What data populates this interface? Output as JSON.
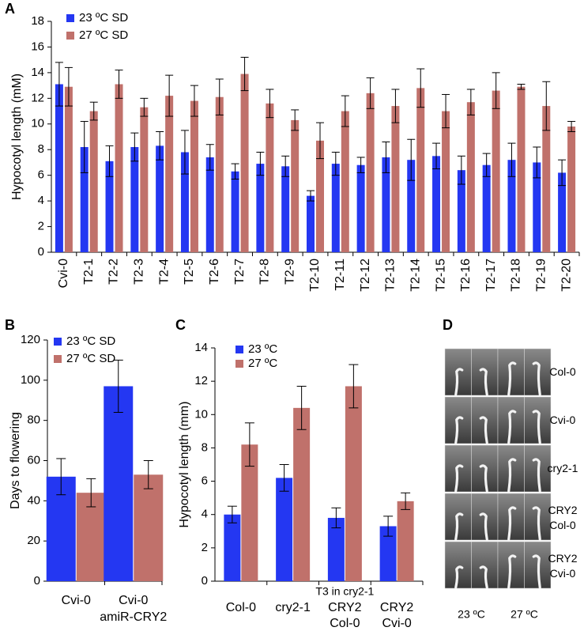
{
  "chart_data": [
    {
      "type": "bar",
      "panel_label": "A",
      "y_label": "Hypocotyl length (mM)",
      "categories": [
        "Cvi-0",
        "T2-1",
        "T2-2",
        "T2-3",
        "T2-4",
        "T2-5",
        "T2-6",
        "T2-7",
        "T2-8",
        "T2-9",
        "T2-10",
        "T2-11",
        "T2-12",
        "T2-13",
        "T2-14",
        "T2-15",
        "T2-16",
        "T2-17",
        "T2-18",
        "T2-19",
        "T2-20"
      ],
      "series": [
        {
          "name": "23 ºC SD",
          "color": "#2437f2",
          "values": [
            13.1,
            8.2,
            7.1,
            8.2,
            8.3,
            7.8,
            7.4,
            6.3,
            6.9,
            6.7,
            4.4,
            6.9,
            6.8,
            7.4,
            7.2,
            7.5,
            6.4,
            6.8,
            7.2,
            7.0,
            6.2
          ],
          "errors": [
            1.7,
            2.0,
            1.2,
            1.1,
            1.1,
            1.7,
            1.0,
            0.6,
            0.9,
            0.8,
            0.4,
            0.9,
            0.6,
            1.2,
            1.6,
            1.0,
            1.1,
            0.9,
            1.3,
            1.2,
            1.0
          ]
        },
        {
          "name": "27 ºC SD",
          "color": "#c0716b",
          "values": [
            12.9,
            11.0,
            13.1,
            11.3,
            12.2,
            11.8,
            12.1,
            13.9,
            11.6,
            10.3,
            8.7,
            11.0,
            12.4,
            11.4,
            12.8,
            11.0,
            11.7,
            12.6,
            12.9,
            11.4,
            9.8
          ],
          "errors": [
            1.5,
            0.7,
            1.1,
            0.7,
            1.6,
            1.2,
            1.4,
            1.3,
            1.1,
            0.8,
            1.4,
            1.2,
            1.2,
            1.3,
            1.5,
            1.3,
            1.0,
            1.4,
            0.2,
            1.9,
            0.4
          ]
        }
      ],
      "ylim": [
        0,
        18
      ],
      "yticks": [
        0,
        2,
        4,
        6,
        8,
        10,
        12,
        14,
        16,
        18
      ],
      "legend": "upper left"
    },
    {
      "type": "bar",
      "panel_label": "B",
      "y_label": "Days to flowering",
      "categories": [
        [
          "Cvi-0"
        ],
        [
          "Cvi-0",
          "amiR-CRY2"
        ]
      ],
      "series": [
        {
          "name": "23 ºC SD",
          "color": "#2437f2",
          "values": [
            52,
            97
          ],
          "errors": [
            9,
            13
          ]
        },
        {
          "name": "27 ºC SD",
          "color": "#c0716b",
          "values": [
            44,
            53
          ],
          "errors": [
            7,
            7
          ]
        }
      ],
      "ylim": [
        0,
        120
      ],
      "yticks": [
        0,
        20,
        40,
        60,
        80,
        100,
        120
      ],
      "legend": "upper left"
    },
    {
      "type": "bar",
      "panel_label": "C",
      "y_label": "Hypocotyl length (mm)",
      "annotation": "T3 in cry2-1",
      "categories": [
        [
          "Col-0"
        ],
        [
          "cry2-1"
        ],
        [
          "CRY2",
          "Col-0"
        ],
        [
          "CRY2",
          "Cvi-0"
        ]
      ],
      "series": [
        {
          "name": "23 ºC",
          "color": "#2437f2",
          "values": [
            4.0,
            6.2,
            3.8,
            3.3
          ],
          "errors": [
            0.5,
            0.8,
            0.6,
            0.6
          ]
        },
        {
          "name": "27 ºC",
          "color": "#c0716b",
          "values": [
            8.2,
            10.4,
            11.7,
            4.8
          ],
          "errors": [
            1.3,
            1.3,
            1.3,
            0.5
          ]
        }
      ],
      "ylim": [
        0,
        14
      ],
      "yticks": [
        0,
        2,
        4,
        6,
        8,
        10,
        12,
        14
      ],
      "legend": "upper left"
    }
  ],
  "photo_panel": {
    "panel_label": "D",
    "row_labels": [
      [
        "Col-0"
      ],
      [
        "Cvi-0"
      ],
      [
        "cry2-1"
      ],
      [
        "CRY2",
        "Col-0"
      ],
      [
        "CRY2",
        "Cvi-0"
      ]
    ],
    "column_labels": [
      "23 ºC",
      "27 ºC"
    ]
  }
}
